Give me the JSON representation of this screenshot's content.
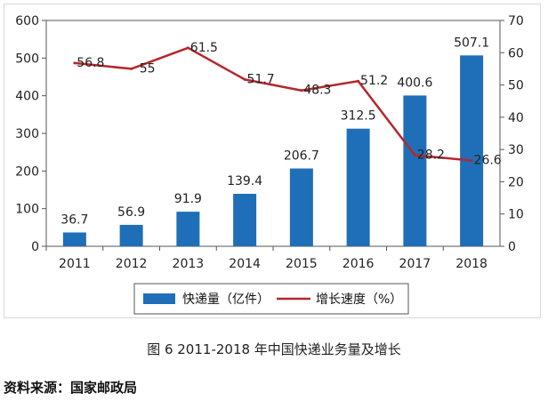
{
  "chart_data": {
    "type": "bar",
    "categories": [
      "2011",
      "2012",
      "2013",
      "2014",
      "2015",
      "2016",
      "2017",
      "2018"
    ],
    "series": [
      {
        "name": "快递量（亿件）",
        "type": "bar",
        "axis": "left",
        "values": [
          36.7,
          56.9,
          91.9,
          139.4,
          206.7,
          312.5,
          400.6,
          507.1
        ],
        "labels": [
          "36.7",
          "56.9",
          "91.9",
          "139.4",
          "206.7",
          "312.5",
          "400.6",
          "507.1"
        ]
      },
      {
        "name": "增长速度（%）",
        "type": "line",
        "axis": "right",
        "values": [
          56.8,
          55,
          61.5,
          51.7,
          48.3,
          51.2,
          28.2,
          26.6
        ],
        "labels": [
          "56.8",
          "55",
          "61.5",
          "51.7",
          "48.3",
          "51.2",
          "28.2",
          "26.6"
        ]
      }
    ],
    "ylim_left": [
      0,
      600
    ],
    "yticks_left": [
      "0",
      "100",
      "200",
      "300",
      "400",
      "500",
      "600"
    ],
    "ylim_right": [
      0,
      70
    ],
    "yticks_right": [
      "0",
      "10",
      "20",
      "30",
      "40",
      "50",
      "60",
      "70"
    ],
    "grid": false,
    "legend_position": "bottom",
    "colors": {
      "bar": "#1f6fb8",
      "line": "#b5272d"
    }
  },
  "caption": "图 6 2011-2018 年中国快递业务量及增长",
  "source": "资料来源：国家邮政局"
}
